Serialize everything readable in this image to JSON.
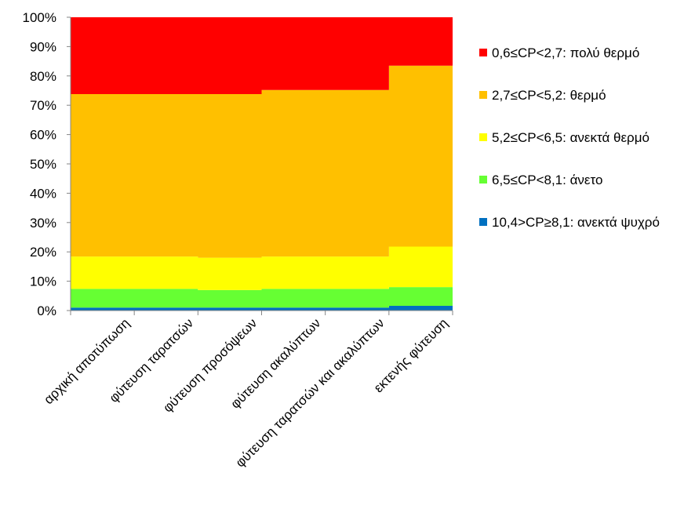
{
  "chart_data": {
    "type": "area",
    "stacked": true,
    "stacked_percent": true,
    "title": "",
    "xlabel": "",
    "ylabel": "",
    "ylim": [
      0,
      100
    ],
    "yticks": [
      "0%",
      "10%",
      "20%",
      "30%",
      "40%",
      "50%",
      "60%",
      "70%",
      "80%",
      "90%",
      "100%"
    ],
    "grid": false,
    "legend_position": "right",
    "categories": [
      "αρχική αποτύπωση",
      "φύτευση ταρατσών",
      "φύτευση προσόψεων",
      "φύτευση ακαλύπτων",
      "φύτευση ταρατσών και ακαλύπτων",
      "εκτενής φύτευση"
    ],
    "series": [
      {
        "name": "10,4>CP≥8,1: ανεκτά ψυχρό",
        "color": "#0070C0",
        "values": [
          1.0,
          1.0,
          1.0,
          1.0,
          1.0,
          1.6
        ]
      },
      {
        "name": "6,5≤CP<8,1: άνετο",
        "color": "#66FF33",
        "values": [
          6.4,
          6.4,
          6.0,
          6.4,
          6.4,
          6.4
        ]
      },
      {
        "name": "5,2≤CP<6,5: ανεκτά θερμό",
        "color": "#FFFF00",
        "values": [
          11.0,
          11.0,
          11.0,
          11.0,
          11.0,
          13.8
        ]
      },
      {
        "name": "2,7≤CP<5,2: θερμό",
        "color": "#FFC000",
        "values": [
          55.4,
          55.4,
          55.8,
          56.8,
          56.8,
          61.7
        ]
      },
      {
        "name": "0,6≤CP<2,7: πολύ θερμό",
        "color": "#FF0000",
        "values": [
          26.2,
          26.2,
          26.2,
          24.8,
          24.8,
          16.5
        ]
      }
    ]
  }
}
